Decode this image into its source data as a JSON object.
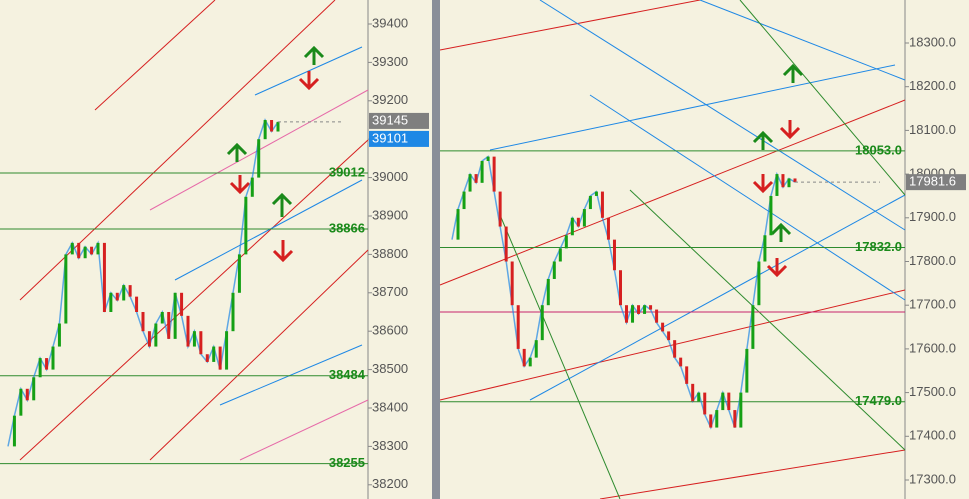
{
  "chart_data": [
    {
      "type": "candlestick",
      "ylim": [
        38163,
        39462.5
      ],
      "yticks": [
        38200,
        38300,
        38400,
        38500,
        38600,
        38700,
        38800,
        38900,
        39000,
        39100,
        39200,
        39300,
        39400
      ],
      "levels": [
        39012,
        38866,
        38484,
        38255
      ],
      "closes": [
        38300,
        38380,
        38450,
        38420,
        38480,
        38530,
        38500,
        38560,
        38620,
        38800,
        38830,
        38790,
        38820,
        38800,
        38830,
        38650,
        38700,
        38680,
        38720,
        38690,
        38650,
        38600,
        38560,
        38620,
        38650,
        38580,
        38700,
        38640,
        38560,
        38600,
        38540,
        38520,
        38560,
        38500,
        38600,
        38700,
        38800,
        38950,
        39000,
        39100,
        39150,
        39120,
        39145
      ],
      "price_tags": [
        39145,
        39101
      ],
      "tag_colors": [
        "#7f7f7f",
        "#1e88e5"
      ]
    },
    {
      "type": "candlestick",
      "ylim": [
        17256.5,
        18398.4
      ],
      "yticks": [
        {
          "value": 17300,
          "label": "17300.0"
        },
        {
          "value": 17400,
          "label": "17400.0"
        },
        {
          "value": 17500,
          "label": "17500.0"
        },
        {
          "value": 17600,
          "label": "17600.0"
        },
        {
          "value": 17700,
          "label": "17700.0"
        },
        {
          "value": 17800,
          "label": "17800.0"
        },
        {
          "value": 17900,
          "label": "17900.0"
        },
        {
          "value": 18000,
          "label": "18000.0"
        },
        {
          "value": 18100,
          "label": "18100.0"
        },
        {
          "value": 18200,
          "label": "18200.0"
        },
        {
          "value": 18300,
          "label": "18300.0"
        }
      ],
      "levels": [
        {
          "value": 18053,
          "label": "18053.0"
        },
        {
          "value": 17832,
          "label": "17832.0"
        },
        {
          "value": 17479,
          "label": "17479.0"
        }
      ],
      "closes": [
        17850,
        17920,
        17960,
        18000,
        17980,
        18030,
        18040,
        17960,
        17880,
        17800,
        17700,
        17600,
        17560,
        17580,
        17620,
        17700,
        17760,
        17800,
        17830,
        17860,
        17900,
        17880,
        17920,
        17950,
        17960,
        17900,
        17850,
        17780,
        17700,
        17660,
        17700,
        17680,
        17700,
        17690,
        17660,
        17640,
        17620,
        17580,
        17560,
        17520,
        17480,
        17500,
        17450,
        17420,
        17460,
        17500,
        17460,
        17420,
        17500,
        17600,
        17700,
        17800,
        17860,
        17950,
        18000,
        17970,
        17990,
        17981.6
      ],
      "price_tags": [
        17981.6
      ],
      "tag_colors": [
        "#7f7f7f"
      ]
    }
  ]
}
